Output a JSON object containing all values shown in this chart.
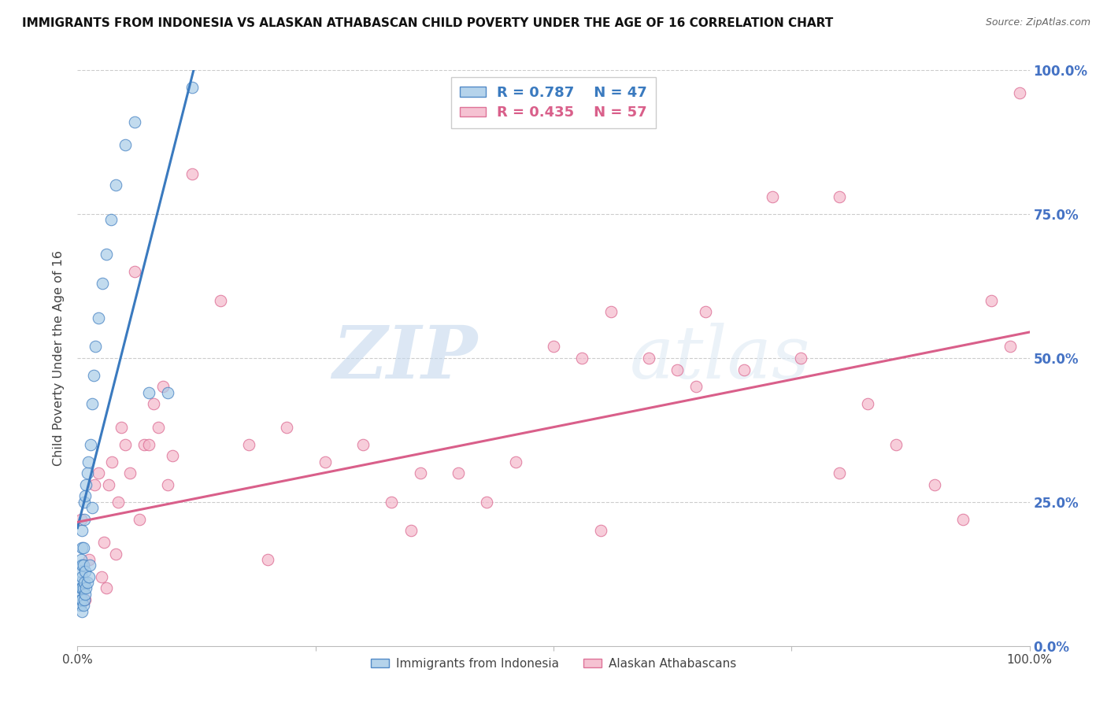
{
  "title": "IMMIGRANTS FROM INDONESIA VS ALASKAN ATHABASCAN CHILD POVERTY UNDER THE AGE OF 16 CORRELATION CHART",
  "source": "Source: ZipAtlas.com",
  "ylabel": "Child Poverty Under the Age of 16",
  "xlim": [
    0,
    1
  ],
  "ylim": [
    0,
    1
  ],
  "legend_label1": "Immigrants from Indonesia",
  "legend_label2": "Alaskan Athabascans",
  "R1": "0.787",
  "N1": "47",
  "R2": "0.435",
  "N2": "57",
  "color1": "#a8cce8",
  "color2": "#f4b8cb",
  "line_color1": "#3a7abf",
  "line_color2": "#d95f8a",
  "watermark_zip": "ZIP",
  "watermark_atlas": "atlas",
  "blue_scatter_x": [
    0.003,
    0.003,
    0.003,
    0.004,
    0.004,
    0.004,
    0.004,
    0.005,
    0.005,
    0.005,
    0.005,
    0.005,
    0.005,
    0.005,
    0.006,
    0.006,
    0.006,
    0.006,
    0.007,
    0.007,
    0.007,
    0.007,
    0.008,
    0.008,
    0.008,
    0.009,
    0.009,
    0.01,
    0.01,
    0.011,
    0.012,
    0.013,
    0.014,
    0.015,
    0.017,
    0.019,
    0.022,
    0.026,
    0.03,
    0.035,
    0.04,
    0.05,
    0.06,
    0.075,
    0.095,
    0.015,
    0.12
  ],
  "blue_scatter_y": [
    0.07,
    0.09,
    0.11,
    0.08,
    0.1,
    0.13,
    0.15,
    0.06,
    0.08,
    0.1,
    0.12,
    0.14,
    0.17,
    0.2,
    0.07,
    0.1,
    0.14,
    0.17,
    0.08,
    0.11,
    0.22,
    0.25,
    0.09,
    0.13,
    0.26,
    0.1,
    0.28,
    0.11,
    0.3,
    0.32,
    0.12,
    0.14,
    0.35,
    0.42,
    0.47,
    0.52,
    0.57,
    0.63,
    0.68,
    0.74,
    0.8,
    0.87,
    0.91,
    0.44,
    0.44,
    0.24,
    0.97
  ],
  "pink_scatter_x": [
    0.004,
    0.008,
    0.012,
    0.018,
    0.022,
    0.025,
    0.028,
    0.03,
    0.033,
    0.036,
    0.04,
    0.043,
    0.046,
    0.05,
    0.055,
    0.06,
    0.065,
    0.07,
    0.075,
    0.08,
    0.085,
    0.09,
    0.095,
    0.1,
    0.12,
    0.15,
    0.18,
    0.22,
    0.26,
    0.3,
    0.33,
    0.36,
    0.4,
    0.43,
    0.46,
    0.5,
    0.53,
    0.56,
    0.6,
    0.63,
    0.66,
    0.7,
    0.73,
    0.76,
    0.8,
    0.83,
    0.86,
    0.9,
    0.93,
    0.96,
    0.98,
    0.99,
    0.8,
    0.65,
    0.55,
    0.35,
    0.2
  ],
  "pink_scatter_y": [
    0.22,
    0.08,
    0.15,
    0.28,
    0.3,
    0.12,
    0.18,
    0.1,
    0.28,
    0.32,
    0.16,
    0.25,
    0.38,
    0.35,
    0.3,
    0.65,
    0.22,
    0.35,
    0.35,
    0.42,
    0.38,
    0.45,
    0.28,
    0.33,
    0.82,
    0.6,
    0.35,
    0.38,
    0.32,
    0.35,
    0.25,
    0.3,
    0.3,
    0.25,
    0.32,
    0.52,
    0.5,
    0.58,
    0.5,
    0.48,
    0.58,
    0.48,
    0.78,
    0.5,
    0.3,
    0.42,
    0.35,
    0.28,
    0.22,
    0.6,
    0.52,
    0.96,
    0.78,
    0.45,
    0.2,
    0.2,
    0.15
  ],
  "blue_line_x": [
    0.0,
    0.125
  ],
  "blue_line_y": [
    0.205,
    1.02
  ],
  "pink_line_x": [
    0.0,
    1.0
  ],
  "pink_line_y": [
    0.215,
    0.545
  ]
}
